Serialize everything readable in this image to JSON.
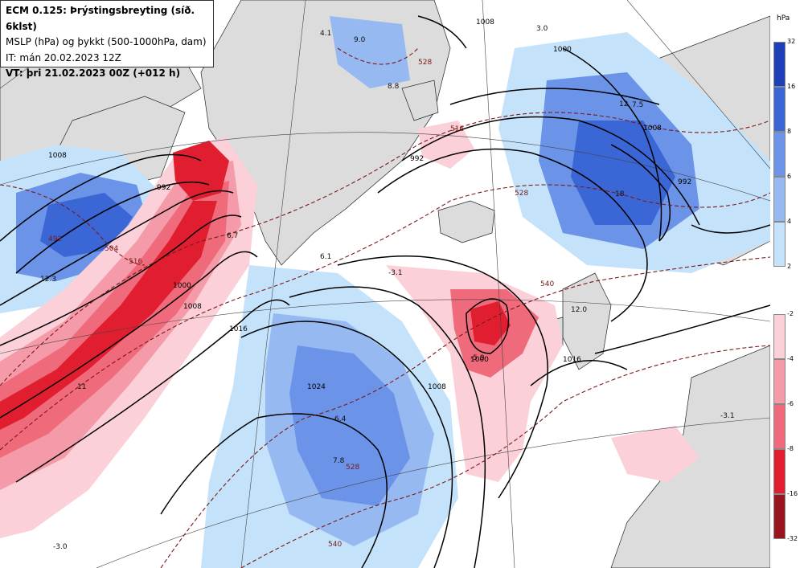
{
  "header": {
    "line1": "ECM 0.125: Þrýstingsbreyting (síð. 6klst)",
    "line2": "MSLP (hPa) og þykkt (500-1000hPa, dam)",
    "line3": "IT: mán 20.02.2023 12Z",
    "line4": "VT: þri 21.02.2023 00Z (+012 h)"
  },
  "legend": {
    "unit": "hPa",
    "rise_ticks": [
      "32",
      "16",
      "8",
      "6",
      "4",
      "2"
    ],
    "fall_ticks": [
      "-2",
      "-4",
      "-6",
      "-8",
      "-16",
      "-32"
    ],
    "rise_colors": [
      "#1f3fb8",
      "#3a66d6",
      "#6b94e8",
      "#96b9f2",
      "#c4e2fa"
    ],
    "fall_colors": [
      "#fbd0d8",
      "#f59aa8",
      "#ef6a7a",
      "#e01e30",
      "#98141e"
    ]
  },
  "map": {
    "isobar_labels": [
      "1008",
      "992",
      "1000",
      "1008",
      "1016",
      "1024",
      "1008",
      "1000",
      "1008",
      "992",
      "1000",
      "1016",
      "992",
      "1008"
    ],
    "thickness_labels": [
      "504",
      "492",
      "516",
      "528",
      "516",
      "528",
      "540",
      "528",
      "540"
    ],
    "tendency_labels": [
      "4.1",
      "9.0",
      "8.8",
      "12.3",
      "6.7",
      "6.1",
      "-3.1",
      "3.0",
      "12",
      "7.5",
      "18",
      "-5.9",
      "6.4",
      "7.8",
      "11",
      "-3.0",
      "-3.1",
      "12.0"
    ]
  }
}
